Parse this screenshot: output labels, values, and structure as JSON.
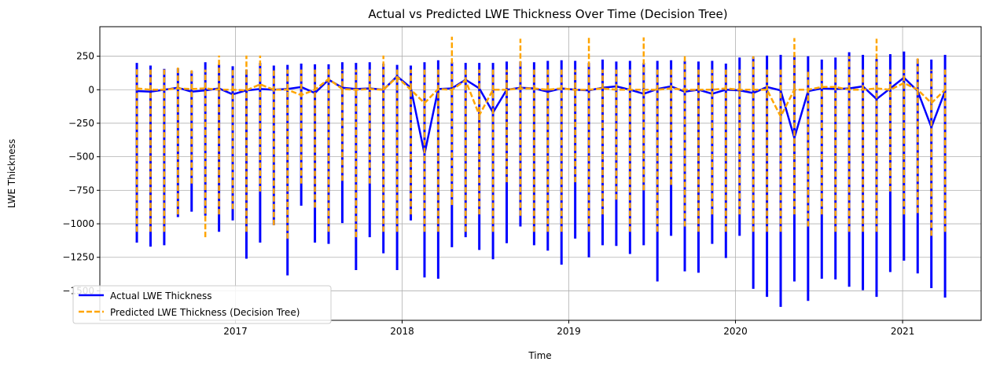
{
  "chart_data": {
    "type": "line",
    "title": "Actual vs Predicted LWE Thickness Over Time (Decision Tree)",
    "xlabel": "Time",
    "ylabel": "LWE Thickness",
    "xlim": [
      "2016-03-10",
      "2021-06-22"
    ],
    "ylim": [
      -1720,
      470
    ],
    "x_ticks": [
      "2017-01-01",
      "2018-01-01",
      "2019-01-01",
      "2020-01-01",
      "2021-01-01"
    ],
    "x_tick_labels": [
      "2017",
      "2018",
      "2019",
      "2020",
      "2021"
    ],
    "y_ticks": [
      250,
      0,
      -250,
      -500,
      -750,
      -1000,
      -1250,
      -1500
    ],
    "y_tick_labels": [
      "250",
      "0",
      "−250",
      "−500",
      "−750",
      "−1000",
      "−1250",
      "−1500"
    ],
    "grid": true,
    "legend_position": "lower-left",
    "colors": {
      "actual": "#0000ff",
      "predicted": "#ffa500",
      "grid": "#b0b0b0"
    },
    "series": [
      {
        "name": "Actual LWE Thickness",
        "style": "solid",
        "color": "#0000ff",
        "points": [
          {
            "date": "2016-05-30",
            "min": -1140,
            "max": 200,
            "mean": -10
          },
          {
            "date": "2016-06-29",
            "min": -1170,
            "max": 180,
            "mean": -15
          },
          {
            "date": "2016-07-29",
            "min": -1160,
            "max": 155,
            "mean": 0
          },
          {
            "date": "2016-08-28",
            "min": -950,
            "max": 160,
            "mean": 15
          },
          {
            "date": "2016-09-27",
            "min": -910,
            "max": 140,
            "mean": -15
          },
          {
            "date": "2016-10-27",
            "min": -940,
            "max": 205,
            "mean": -5
          },
          {
            "date": "2016-11-26",
            "min": -1060,
            "max": 190,
            "mean": 10
          },
          {
            "date": "2016-12-26",
            "min": -975,
            "max": 175,
            "mean": -35
          },
          {
            "date": "2017-01-25",
            "min": -1260,
            "max": 150,
            "mean": -5
          },
          {
            "date": "2017-02-24",
            "min": -1140,
            "max": 200,
            "mean": 5
          },
          {
            "date": "2017-03-26",
            "min": -1010,
            "max": 180,
            "mean": 0
          },
          {
            "date": "2017-04-25",
            "min": -1385,
            "max": 185,
            "mean": 5
          },
          {
            "date": "2017-05-25",
            "min": -865,
            "max": 195,
            "mean": 20
          },
          {
            "date": "2017-06-24",
            "min": -1140,
            "max": 190,
            "mean": -25
          },
          {
            "date": "2017-07-24",
            "min": -1150,
            "max": 190,
            "mean": 75
          },
          {
            "date": "2017-08-23",
            "min": -995,
            "max": 205,
            "mean": 15
          },
          {
            "date": "2017-09-22",
            "min": -1345,
            "max": 200,
            "mean": 5
          },
          {
            "date": "2017-10-22",
            "min": -1100,
            "max": 205,
            "mean": 10
          },
          {
            "date": "2017-11-21",
            "min": -1220,
            "max": 195,
            "mean": 0
          },
          {
            "date": "2017-12-21",
            "min": -1345,
            "max": 185,
            "mean": 100
          },
          {
            "date": "2018-01-20",
            "min": -975,
            "max": 180,
            "mean": 15
          },
          {
            "date": "2018-02-19",
            "min": -1400,
            "max": 205,
            "mean": -480
          },
          {
            "date": "2018-03-21",
            "min": -1410,
            "max": 220,
            "mean": 5
          },
          {
            "date": "2018-04-20",
            "min": -1175,
            "max": 205,
            "mean": 10
          },
          {
            "date": "2018-05-20",
            "min": -1100,
            "max": 200,
            "mean": 75
          },
          {
            "date": "2018-06-19",
            "min": -1195,
            "max": 200,
            "mean": 10
          },
          {
            "date": "2018-07-19",
            "min": -1265,
            "max": 200,
            "mean": -170
          },
          {
            "date": "2018-08-18",
            "min": -1145,
            "max": 210,
            "mean": 0
          },
          {
            "date": "2018-09-17",
            "min": -1020,
            "max": 210,
            "mean": 15
          },
          {
            "date": "2018-10-17",
            "min": -1160,
            "max": 205,
            "mean": 10
          },
          {
            "date": "2018-11-16",
            "min": -1200,
            "max": 215,
            "mean": -15
          },
          {
            "date": "2018-12-16",
            "min": -1305,
            "max": 220,
            "mean": 10
          },
          {
            "date": "2019-01-15",
            "min": -1110,
            "max": 215,
            "mean": 0
          },
          {
            "date": "2019-02-14",
            "min": -1250,
            "max": 200,
            "mean": -5
          },
          {
            "date": "2019-03-16",
            "min": -1160,
            "max": 225,
            "mean": 15
          },
          {
            "date": "2019-04-15",
            "min": -1165,
            "max": 210,
            "mean": 25
          },
          {
            "date": "2019-05-15",
            "min": -1225,
            "max": 215,
            "mean": 0
          },
          {
            "date": "2019-06-14",
            "min": -1160,
            "max": 200,
            "mean": -30
          },
          {
            "date": "2019-07-14",
            "min": -1430,
            "max": 215,
            "mean": 5
          },
          {
            "date": "2019-08-13",
            "min": -1090,
            "max": 220,
            "mean": 25
          },
          {
            "date": "2019-09-12",
            "min": -1355,
            "max": 215,
            "mean": -15
          },
          {
            "date": "2019-10-12",
            "min": -1365,
            "max": 210,
            "mean": 0
          },
          {
            "date": "2019-11-11",
            "min": -1150,
            "max": 215,
            "mean": -30
          },
          {
            "date": "2019-12-11",
            "min": -1255,
            "max": 195,
            "mean": 0
          },
          {
            "date": "2020-01-10",
            "min": -1090,
            "max": 240,
            "mean": -5
          },
          {
            "date": "2020-02-09",
            "min": -1485,
            "max": 245,
            "mean": -25
          },
          {
            "date": "2020-03-10",
            "min": -1545,
            "max": 255,
            "mean": 20
          },
          {
            "date": "2020-04-09",
            "min": -1620,
            "max": 260,
            "mean": -5
          },
          {
            "date": "2020-05-09",
            "min": -1430,
            "max": 255,
            "mean": -360
          },
          {
            "date": "2020-06-08",
            "min": -1575,
            "max": 250,
            "mean": -10
          },
          {
            "date": "2020-07-08",
            "min": -1410,
            "max": 225,
            "mean": 10
          },
          {
            "date": "2020-08-07",
            "min": -1415,
            "max": 240,
            "mean": 5
          },
          {
            "date": "2020-09-06",
            "min": -1470,
            "max": 280,
            "mean": 10
          },
          {
            "date": "2020-10-06",
            "min": -1495,
            "max": 260,
            "mean": 25
          },
          {
            "date": "2020-11-05",
            "min": -1545,
            "max": 230,
            "mean": -70
          },
          {
            "date": "2020-12-05",
            "min": -1360,
            "max": 265,
            "mean": 10
          },
          {
            "date": "2021-01-04",
            "min": -1275,
            "max": 285,
            "mean": 90
          },
          {
            "date": "2021-02-03",
            "min": -1370,
            "max": 230,
            "mean": -10
          },
          {
            "date": "2021-03-05",
            "min": -1480,
            "max": 225,
            "mean": -280
          },
          {
            "date": "2021-04-04",
            "min": -1550,
            "max": 260,
            "mean": -10
          }
        ]
      },
      {
        "name": "Predicted LWE Thickness (Decision Tree)",
        "style": "dashed",
        "color": "#ffa500",
        "points": [
          {
            "date": "2016-05-30",
            "min": -1060,
            "max": 170,
            "mean": 10
          },
          {
            "date": "2016-06-29",
            "min": -1060,
            "max": 150,
            "mean": 0
          },
          {
            "date": "2016-07-29",
            "min": -1060,
            "max": 150,
            "mean": 0
          },
          {
            "date": "2016-08-28",
            "min": -930,
            "max": 165,
            "mean": 10
          },
          {
            "date": "2016-09-27",
            "min": -700,
            "max": 145,
            "mean": 5
          },
          {
            "date": "2016-10-27",
            "min": -1100,
            "max": 150,
            "mean": 10
          },
          {
            "date": "2016-11-26",
            "min": -930,
            "max": 255,
            "mean": 0
          },
          {
            "date": "2016-12-26",
            "min": -890,
            "max": 150,
            "mean": 0
          },
          {
            "date": "2017-01-25",
            "min": -1060,
            "max": 255,
            "mean": -5
          },
          {
            "date": "2017-02-24",
            "min": -760,
            "max": 255,
            "mean": 40
          },
          {
            "date": "2017-03-26",
            "min": -1010,
            "max": 150,
            "mean": 0
          },
          {
            "date": "2017-04-25",
            "min": -1110,
            "max": 150,
            "mean": 0
          },
          {
            "date": "2017-05-25",
            "min": -700,
            "max": 150,
            "mean": -40
          },
          {
            "date": "2017-06-24",
            "min": -880,
            "max": 150,
            "mean": 0
          },
          {
            "date": "2017-07-24",
            "min": -1060,
            "max": 155,
            "mean": 80
          },
          {
            "date": "2017-08-23",
            "min": -680,
            "max": 150,
            "mean": 5
          },
          {
            "date": "2017-09-22",
            "min": -1100,
            "max": 150,
            "mean": 0
          },
          {
            "date": "2017-10-22",
            "min": -700,
            "max": 150,
            "mean": 5
          },
          {
            "date": "2017-11-21",
            "min": -1060,
            "max": 255,
            "mean": 0
          },
          {
            "date": "2017-12-21",
            "min": -1060,
            "max": 150,
            "mean": 95
          },
          {
            "date": "2018-01-20",
            "min": -930,
            "max": 150,
            "mean": 0
          },
          {
            "date": "2018-02-19",
            "min": -1060,
            "max": 150,
            "mean": -100
          },
          {
            "date": "2018-03-21",
            "min": -1060,
            "max": 150,
            "mean": 5
          },
          {
            "date": "2018-04-20",
            "min": -860,
            "max": 395,
            "mean": 0
          },
          {
            "date": "2018-05-20",
            "min": -1060,
            "max": 150,
            "mean": 70
          },
          {
            "date": "2018-06-19",
            "min": -930,
            "max": 150,
            "mean": -190
          },
          {
            "date": "2018-07-19",
            "min": -1060,
            "max": 150,
            "mean": 0
          },
          {
            "date": "2018-08-18",
            "min": -690,
            "max": 150,
            "mean": 0
          },
          {
            "date": "2018-09-17",
            "min": -940,
            "max": 380,
            "mean": 10
          },
          {
            "date": "2018-10-17",
            "min": -1060,
            "max": 150,
            "mean": 10
          },
          {
            "date": "2018-11-16",
            "min": -1060,
            "max": 150,
            "mean": 0
          },
          {
            "date": "2018-12-16",
            "min": -1060,
            "max": 150,
            "mean": 10
          },
          {
            "date": "2019-01-15",
            "min": -690,
            "max": 150,
            "mean": 0
          },
          {
            "date": "2019-02-14",
            "min": -1060,
            "max": 390,
            "mean": 0
          },
          {
            "date": "2019-03-16",
            "min": -930,
            "max": 150,
            "mean": 10
          },
          {
            "date": "2019-04-15",
            "min": -820,
            "max": 150,
            "mean": 0
          },
          {
            "date": "2019-05-15",
            "min": -1060,
            "max": 150,
            "mean": 0
          },
          {
            "date": "2019-06-14",
            "min": -750,
            "max": 390,
            "mean": 0
          },
          {
            "date": "2019-07-14",
            "min": -1060,
            "max": 150,
            "mean": 0
          },
          {
            "date": "2019-08-13",
            "min": -710,
            "max": 150,
            "mean": 10
          },
          {
            "date": "2019-09-12",
            "min": -1020,
            "max": 250,
            "mean": 0
          },
          {
            "date": "2019-10-12",
            "min": -1060,
            "max": 150,
            "mean": 0
          },
          {
            "date": "2019-11-11",
            "min": -930,
            "max": 150,
            "mean": 0
          },
          {
            "date": "2019-12-11",
            "min": -1060,
            "max": 150,
            "mean": 10
          },
          {
            "date": "2020-01-10",
            "min": -930,
            "max": 150,
            "mean": 0
          },
          {
            "date": "2020-02-09",
            "min": -1060,
            "max": 250,
            "mean": 0
          },
          {
            "date": "2020-03-10",
            "min": -1060,
            "max": 150,
            "mean": 0
          },
          {
            "date": "2020-04-09",
            "min": -1060,
            "max": 150,
            "mean": -200
          },
          {
            "date": "2020-05-09",
            "min": -930,
            "max": 385,
            "mean": 0
          },
          {
            "date": "2020-06-08",
            "min": -1020,
            "max": 150,
            "mean": 0
          },
          {
            "date": "2020-07-08",
            "min": -930,
            "max": 150,
            "mean": 20
          },
          {
            "date": "2020-08-07",
            "min": -1060,
            "max": 150,
            "mean": 20
          },
          {
            "date": "2020-09-06",
            "min": -1060,
            "max": 250,
            "mean": 0
          },
          {
            "date": "2020-10-06",
            "min": -1060,
            "max": 150,
            "mean": 0
          },
          {
            "date": "2020-11-05",
            "min": -1060,
            "max": 380,
            "mean": 10
          },
          {
            "date": "2020-12-05",
            "min": -760,
            "max": 150,
            "mean": 0
          },
          {
            "date": "2021-01-04",
            "min": -930,
            "max": 150,
            "mean": 50
          },
          {
            "date": "2021-02-03",
            "min": -920,
            "max": 250,
            "mean": 0
          },
          {
            "date": "2021-03-05",
            "min": -1090,
            "max": 150,
            "mean": -100
          },
          {
            "date": "2021-04-04",
            "min": -1060,
            "max": 150,
            "mean": 0
          }
        ]
      }
    ]
  }
}
